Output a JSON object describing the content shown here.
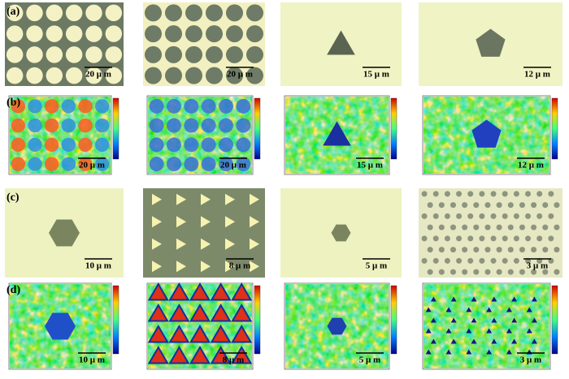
{
  "panels": [
    {
      "label": "(a)",
      "scale_bars": [
        "20 μ m",
        "20 μ m",
        "15 μ m",
        "12 μ m"
      ]
    },
    {
      "label": "(b)",
      "scale_bars": [
        "20 μ m",
        "20 μ m",
        "15 μ m",
        "12 μ m"
      ]
    },
    {
      "label": "(c)",
      "scale_bars": [
        "10 μ m",
        "8 μ m",
        "5 μ m",
        "3 μ m"
      ]
    },
    {
      "label": "(d)",
      "scale_bars": [
        "10 μ m",
        "8 μ m",
        "5 μ m",
        "3 μ m"
      ]
    }
  ]
}
